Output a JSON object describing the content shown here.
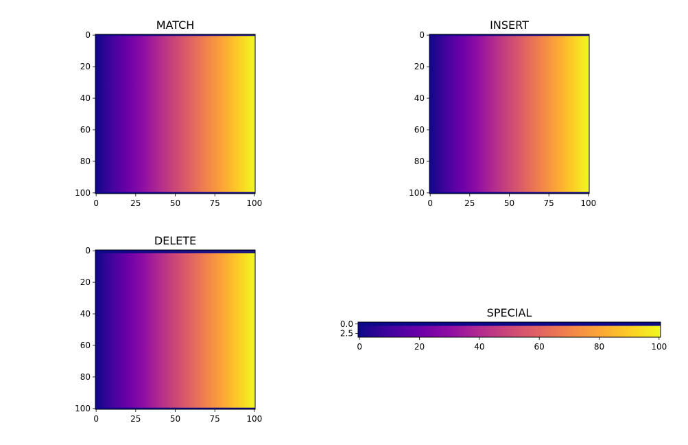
{
  "chart_data": [
    {
      "type": "heatmap",
      "title": "MATCH",
      "colormap": "plasma",
      "rows": 101,
      "cols": 101,
      "xlim": [
        -0.5,
        100.5
      ],
      "ylim": [
        100.5,
        -0.5
      ],
      "x_ticks": [
        "0",
        "25",
        "50",
        "75",
        "100"
      ],
      "y_ticks": [
        "0",
        "20",
        "40",
        "60",
        "80",
        "100"
      ],
      "value_pattern": "each row increases linearly from 0 (column 0) to 1 (column 100); rows 1-99 identical",
      "dark_rows": [
        0,
        100
      ]
    },
    {
      "type": "heatmap",
      "title": "INSERT",
      "colormap": "plasma",
      "rows": 101,
      "cols": 101,
      "xlim": [
        -0.5,
        100.5
      ],
      "ylim": [
        100.5,
        -0.5
      ],
      "x_ticks": [
        "0",
        "25",
        "50",
        "75",
        "100"
      ],
      "y_ticks": [
        "0",
        "20",
        "40",
        "60",
        "80",
        "100"
      ],
      "value_pattern": "each row increases linearly from 0 (column 0) to 1 (column 100); rows 1-99 identical",
      "dark_rows": [
        0,
        100
      ]
    },
    {
      "type": "heatmap",
      "title": "DELETE",
      "colormap": "plasma",
      "rows": 101,
      "cols": 101,
      "xlim": [
        -0.5,
        100.5
      ],
      "ylim": [
        100.5,
        -0.5
      ],
      "x_ticks": [
        "0",
        "25",
        "50",
        "75",
        "100"
      ],
      "y_ticks": [
        "0",
        "20",
        "40",
        "60",
        "80",
        "100"
      ],
      "value_pattern": "each row increases linearly from 0 (column 0) to 1 (column 100)",
      "dark_rows": [
        0,
        1,
        100
      ]
    },
    {
      "type": "heatmap",
      "title": "SPECIAL",
      "colormap": "plasma",
      "rows": 4,
      "cols": 101,
      "xlim": [
        -0.5,
        100.5
      ],
      "ylim": [
        3.5,
        -0.5
      ],
      "x_ticks": [
        "0",
        "20",
        "40",
        "60",
        "80",
        "100"
      ],
      "y_ticks": [
        "0.0",
        "2.5"
      ],
      "value_pattern": "each row increases linearly from 0 (column 0) to 1 (column 100)",
      "dark_rows": [
        0
      ]
    }
  ]
}
